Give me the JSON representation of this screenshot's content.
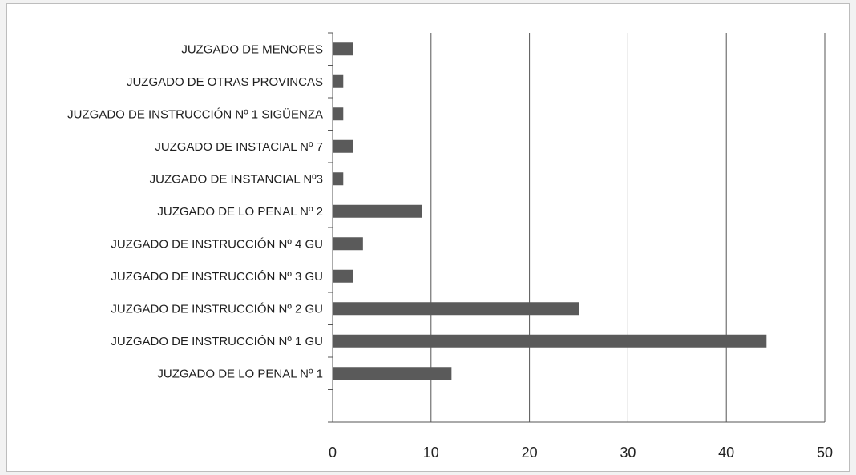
{
  "chart_data": {
    "type": "bar",
    "orientation": "horizontal",
    "categories": [
      "JUZGADO DE MENORES",
      "JUZGADO DE OTRAS PROVINCAS",
      "JUZGADO DE INSTRUCCIÓN Nº 1 SIGÜENZA",
      "JUZGADO DE INSTACIAL Nº 7",
      "JUZGADO DE INSTANCIAL Nº3",
      "JUZGADO DE LO PENAL Nº 2",
      "JUZGADO DE INSTRUCCIÓN Nº 4 GU",
      "JUZGADO DE INSTRUCCIÓN Nº 3 GU",
      "JUZGADO DE INSTRUCCIÓN Nº 2 GU",
      "JUZGADO DE INSTRUCCIÓN Nº 1 GU",
      "JUZGADO DE LO PENAL Nº 1"
    ],
    "values": [
      2,
      1,
      1,
      2,
      1,
      9,
      3,
      2,
      25,
      44,
      12
    ],
    "xlim": [
      0,
      50
    ],
    "xticks": [
      "0",
      "10",
      "20",
      "30",
      "40",
      "50"
    ],
    "title": "",
    "xlabel": "",
    "ylabel": "",
    "grid": "vertical",
    "legend": "none",
    "colors": {
      "bar": "#5a5a5a",
      "grid": "#555555",
      "axis": "#555555"
    }
  }
}
